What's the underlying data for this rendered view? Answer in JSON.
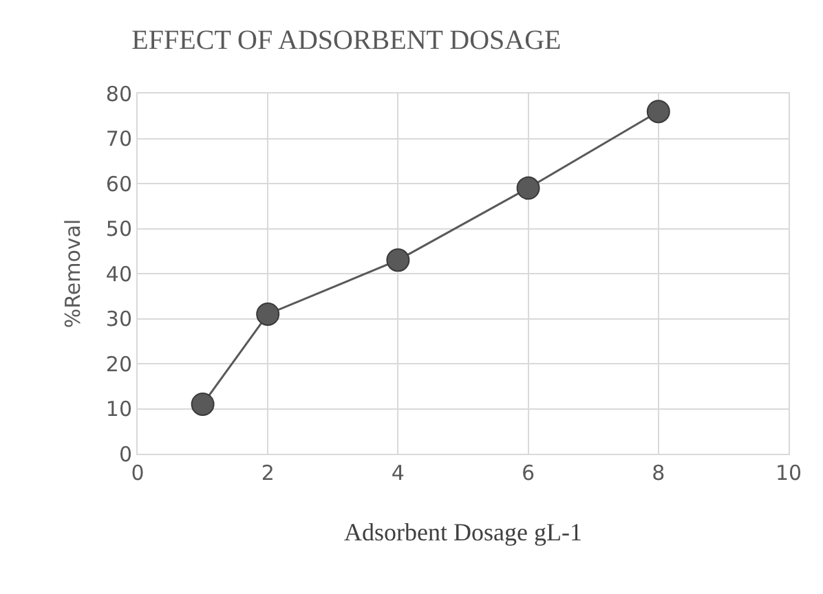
{
  "chart_data": {
    "type": "line",
    "title": "EFFECT OF ADSORBENT DOSAGE",
    "xlabel": "Adsorbent Dosage gL-1",
    "ylabel": "%Removal",
    "x": [
      1,
      2,
      4,
      6,
      8
    ],
    "series": [
      {
        "color": "#595959",
        "values": [
          11,
          31,
          43,
          59,
          76
        ]
      }
    ],
    "xlim": [
      0,
      10
    ],
    "xticks": [
      0,
      2,
      4,
      6,
      8,
      10
    ],
    "ylim": [
      0,
      80
    ],
    "yticks": [
      0,
      10,
      20,
      30,
      40,
      50,
      60,
      70,
      80
    ],
    "grid": true,
    "legend": false,
    "marker": "circle",
    "line_style": "solid"
  }
}
